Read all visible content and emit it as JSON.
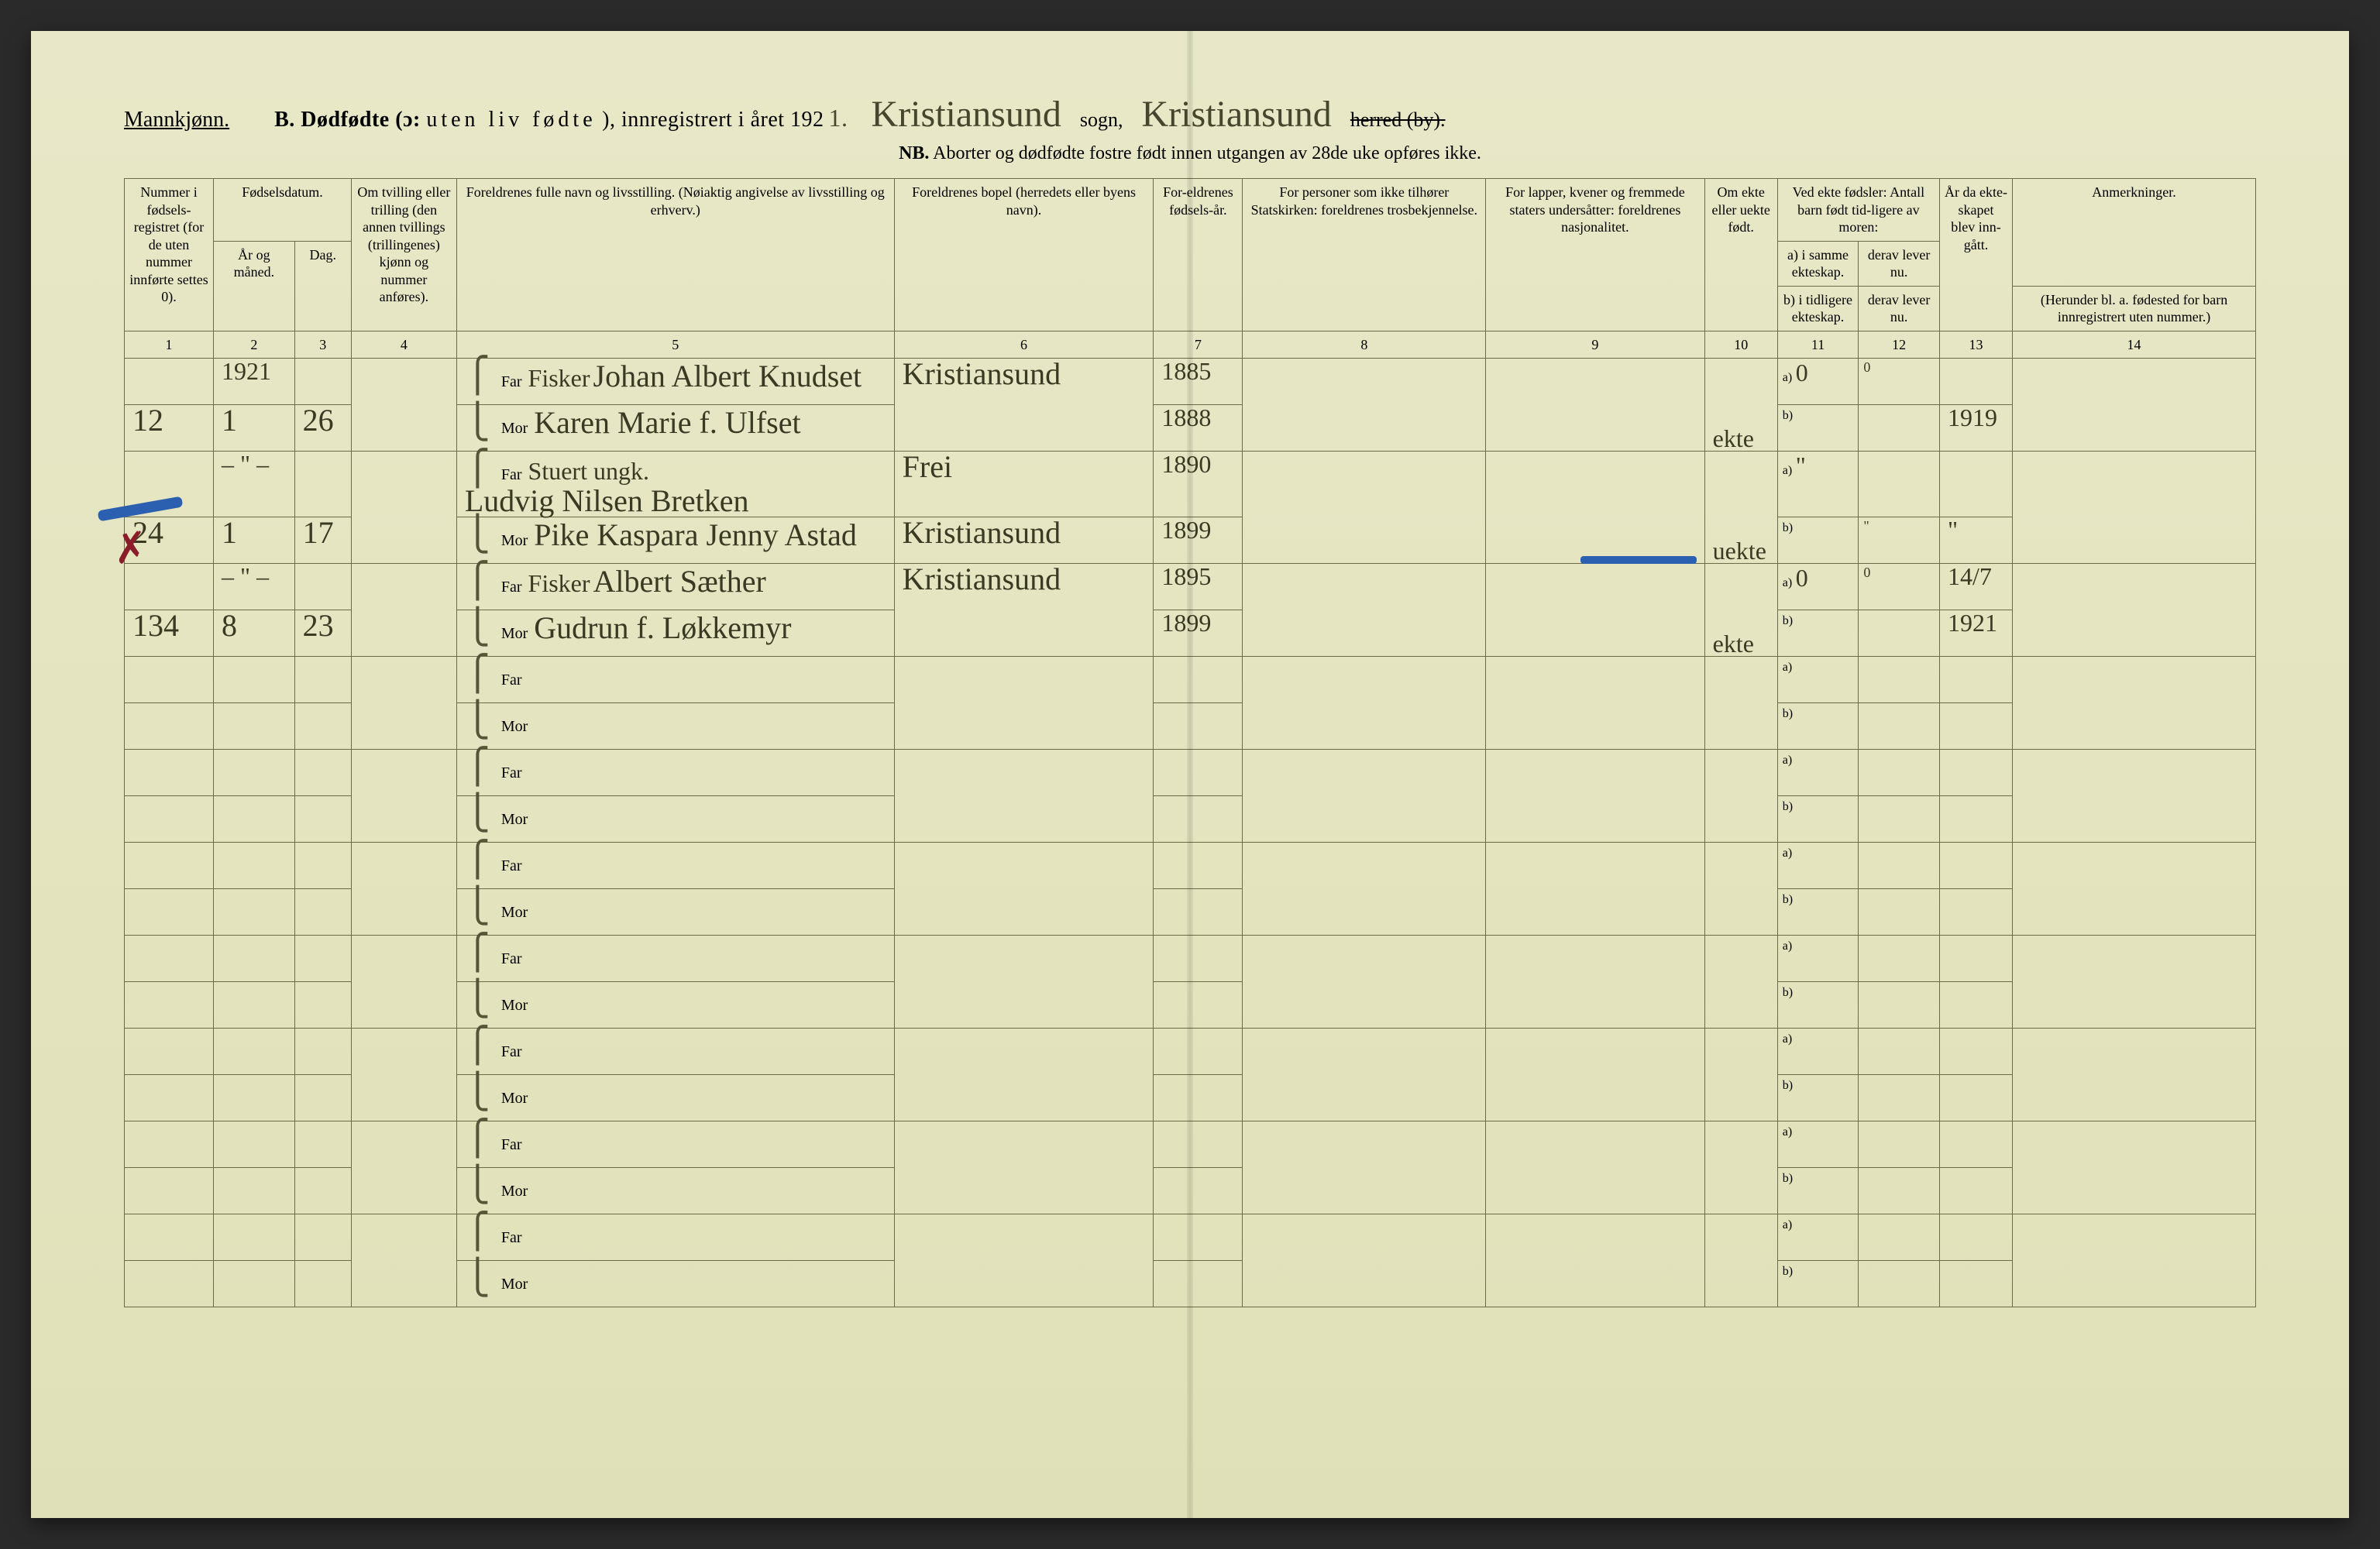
{
  "header": {
    "gender": "Mannkjønn.",
    "section_letter": "B.",
    "title_main": "Dødfødte (ɔ:",
    "title_spaced": "uten liv fødte",
    "title_tail": "), innregistrert i året 192",
    "year_digit": "1.",
    "sogn_handwritten": "Kristiansund",
    "sogn_label": "sogn,",
    "herred_handwritten": "Kristiansund",
    "herred_label": "herred (by).",
    "nb_label": "NB.",
    "nb_text": "Aborter og dødfødte fostre født innen utgangen av 28de uke opføres ikke."
  },
  "columns": {
    "c1": "Nummer i fødsels-registret (for de uten nummer innførte settes 0).",
    "c2_group": "Fødselsdatum.",
    "c2a": "År og måned.",
    "c2b": "Dag.",
    "c3": "Om tvilling eller trilling (den annen tvillings (trillingenes) kjønn og nummer anføres).",
    "c4": "Foreldrenes fulle navn og livsstilling. (Nøiaktig angivelse av livsstilling og erhverv.)",
    "c5": "Foreldrenes bopel (herredets eller byens navn).",
    "c6": "For-eldrenes fødsels-år.",
    "c7": "For personer som ikke tilhører Statskirken: foreldrenes trosbekjennelse.",
    "c8": "For lapper, kvener og fremmede staters undersåtter: foreldrenes nasjonalitet.",
    "c9": "Om ekte eller uekte født.",
    "c10_group": "Ved ekte fødsler: Antall barn født tid-ligere av moren:",
    "c10a": "a) i samme ekteskap.",
    "c10b": "b) i tidligere ekteskap.",
    "c11a": "derav lever nu.",
    "c11b": "derav lever nu.",
    "c12": "År da ekte-skapet blev inn-gått.",
    "c13": "Anmerkninger.",
    "c13_sub": "(Herunder bl. a. fødested for barn innregistrert uten nummer.)"
  },
  "colnums": [
    "1",
    "2",
    "3",
    "4",
    "5",
    "6",
    "7",
    "8",
    "9",
    "10",
    "11",
    "12",
    "13",
    "14"
  ],
  "far_label": "Far",
  "mor_label": "Mor",
  "entries": [
    {
      "num": "12",
      "year_line": "1921",
      "month": "1",
      "day": "26",
      "far_occ": "Fisker",
      "far_name": "Johan Albert Knudset",
      "mor_name": "Karen Marie f. Ulfset",
      "bopel": "Kristiansund",
      "far_year": "1885",
      "mor_year": "1888",
      "ekte": "ekte",
      "a_same": "0",
      "a_lever": "0",
      "ekteskap_aar": "1919"
    },
    {
      "num": "24",
      "year_line": "– \" –",
      "month": "1",
      "day": "17",
      "far_occ": "Stuert ungk.",
      "far_name": "Ludvig Nilsen Bretken",
      "mor_name": "Pike Kaspara Jenny Astad",
      "bopel_far": "Frei",
      "bopel_mor": "Kristiansund",
      "far_year": "1890",
      "mor_year": "1899",
      "ekte": "uekte",
      "a_same": "\"",
      "a_lever": "\"",
      "mor_lever": "\""
    },
    {
      "num": "134",
      "year_line": "– \" –",
      "month": "8",
      "day": "23",
      "far_occ": "Fisker",
      "far_name": "Albert Sæther",
      "mor_name": "Gudrun f. Løkkemyr",
      "bopel": "Kristiansund",
      "far_year": "1895",
      "mor_year": "1899",
      "ekte": "ekte",
      "a_same": "0",
      "a_lever": "0",
      "ekteskap_a_top": "14/7",
      "ekteskap_aar": "1921"
    }
  ],
  "annotation_colors": {
    "red": "#8b1c2a",
    "blue": "#2b5fb0",
    "ink": "#3a3a24",
    "rule": "#6b6b48",
    "paper": "#e6e6c2"
  }
}
